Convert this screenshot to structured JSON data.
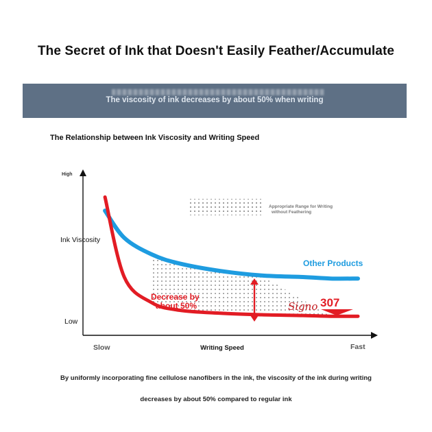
{
  "title": "The Secret of Ink that Doesn't Easily Feather/Accumulate",
  "banner": {
    "text": "The viscosity of ink decreases by about 50% when writing"
  },
  "subtitle": "The Relationship between Ink Viscosity and Writing Speed",
  "chart_data": {
    "type": "line",
    "xlabel": "Writing Speed",
    "ylabel": "Ink Viscosity",
    "x_ticks": [
      "Slow",
      "Fast"
    ],
    "y_ticks": [
      "High",
      "Low"
    ],
    "x": [
      0.08,
      0.15,
      0.25,
      0.35,
      0.5,
      0.65,
      0.8,
      0.9,
      1.0
    ],
    "ylim": [
      0,
      1
    ],
    "series": [
      {
        "name": "Other Products",
        "color": "#1e9ce0",
        "values": [
          0.74,
          0.56,
          0.45,
          0.39,
          0.34,
          0.31,
          0.3,
          0.29,
          0.29
        ]
      },
      {
        "name": "Signo 307",
        "color": "#e21c24",
        "values": [
          0.83,
          0.3,
          0.13,
          0.08,
          0.06,
          0.05,
          0.045,
          0.04,
          0.04
        ]
      }
    ],
    "annotations": {
      "shaded_region": "Appropriate Range for Writing without Feathering",
      "decrease_label": "Decrease by about 50%",
      "brand_script": "Signo",
      "brand_number": "307"
    },
    "legend": "inline-labels",
    "grid": false
  },
  "footer": {
    "line1": "By uniformly incorporating fine cellulose nanofibers in the ink, the viscosity of the ink during writing",
    "line2": "decreases by about 50% compared to regular ink"
  }
}
